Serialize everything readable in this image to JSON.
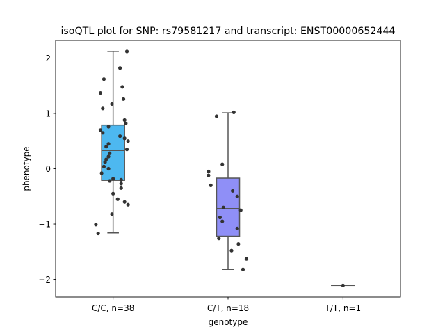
{
  "chart_data": {
    "type": "box",
    "title": "isoQTL plot for SNP: rs79581217 and transcript: ENST00000652444",
    "xlabel": "genotype",
    "ylabel": "phenotype",
    "ylim": [
      -2.32,
      2.32
    ],
    "yticks": [
      2,
      1,
      0,
      -1,
      -2
    ],
    "ytick_labels": [
      "2",
      "1",
      "0",
      "−1",
      "−2"
    ],
    "grid": false,
    "categories": [
      "C/C, n=38",
      "C/T, n=18",
      "T/T, n=1"
    ],
    "box_colors": [
      "#4db8f0",
      "#8f8ff7",
      "#c39bf7"
    ],
    "box_edge_color": "#555555",
    "point_color": "#333333",
    "boxes": [
      {
        "whisker_low": -1.16,
        "q1": -0.21,
        "median": 0.33,
        "q3": 0.79,
        "whisker_high": 2.12
      },
      {
        "whisker_low": -1.82,
        "q1": -1.22,
        "median": -0.72,
        "q3": -0.17,
        "whisker_high": 1.01
      },
      {
        "whisker_low": -2.11,
        "q1": -2.11,
        "median": -2.11,
        "q3": -2.11,
        "whisker_high": -2.11
      }
    ],
    "points": [
      [
        {
          "x": 0.12,
          "y": 2.12
        },
        {
          "x": 0.06,
          "y": 1.82
        },
        {
          "x": -0.08,
          "y": 1.62
        },
        {
          "x": 0.08,
          "y": 1.48
        },
        {
          "x": -0.11,
          "y": 1.37
        },
        {
          "x": 0.09,
          "y": 1.26
        },
        {
          "x": -0.01,
          "y": 1.17
        },
        {
          "x": -0.09,
          "y": 1.09
        },
        {
          "x": 0.1,
          "y": 0.88
        },
        {
          "x": 0.11,
          "y": 0.82
        },
        {
          "x": -0.04,
          "y": 0.76
        },
        {
          "x": -0.11,
          "y": 0.7
        },
        {
          "x": -0.09,
          "y": 0.65
        },
        {
          "x": 0.06,
          "y": 0.59
        },
        {
          "x": 0.1,
          "y": 0.55
        },
        {
          "x": 0.13,
          "y": 0.5
        },
        {
          "x": -0.04,
          "y": 0.45
        },
        {
          "x": -0.06,
          "y": 0.4
        },
        {
          "x": 0.12,
          "y": 0.35
        },
        {
          "x": -0.03,
          "y": 0.28
        },
        {
          "x": -0.04,
          "y": 0.22
        },
        {
          "x": -0.06,
          "y": 0.17
        },
        {
          "x": -0.07,
          "y": 0.12
        },
        {
          "x": -0.08,
          "y": 0.04
        },
        {
          "x": -0.04,
          "y": 0.0
        },
        {
          "x": -0.1,
          "y": -0.08
        },
        {
          "x": 0.0,
          "y": -0.18
        },
        {
          "x": 0.07,
          "y": -0.2
        },
        {
          "x": -0.03,
          "y": -0.22
        },
        {
          "x": 0.07,
          "y": -0.27
        },
        {
          "x": 0.07,
          "y": -0.35
        },
        {
          "x": 0.0,
          "y": -0.45
        },
        {
          "x": 0.04,
          "y": -0.55
        },
        {
          "x": 0.1,
          "y": -0.6
        },
        {
          "x": 0.13,
          "y": -0.65
        },
        {
          "x": -0.01,
          "y": -0.82
        },
        {
          "x": -0.15,
          "y": -1.01
        },
        {
          "x": -0.13,
          "y": -1.17
        }
      ],
      [
        {
          "x": 0.05,
          "y": 1.02
        },
        {
          "x": -0.1,
          "y": 0.95
        },
        {
          "x": -0.05,
          "y": 0.08
        },
        {
          "x": -0.17,
          "y": -0.05
        },
        {
          "x": -0.17,
          "y": -0.12
        },
        {
          "x": -0.15,
          "y": -0.3
        },
        {
          "x": 0.04,
          "y": -0.4
        },
        {
          "x": 0.08,
          "y": -0.5
        },
        {
          "x": -0.04,
          "y": -0.7
        },
        {
          "x": 0.11,
          "y": -0.75
        },
        {
          "x": -0.07,
          "y": -0.88
        },
        {
          "x": -0.05,
          "y": -0.95
        },
        {
          "x": 0.08,
          "y": -1.08
        },
        {
          "x": -0.08,
          "y": -1.26
        },
        {
          "x": 0.09,
          "y": -1.36
        },
        {
          "x": 0.03,
          "y": -1.48
        },
        {
          "x": 0.16,
          "y": -1.63
        },
        {
          "x": 0.13,
          "y": -1.82
        }
      ],
      [
        {
          "x": 0.0,
          "y": -2.11
        }
      ]
    ]
  }
}
